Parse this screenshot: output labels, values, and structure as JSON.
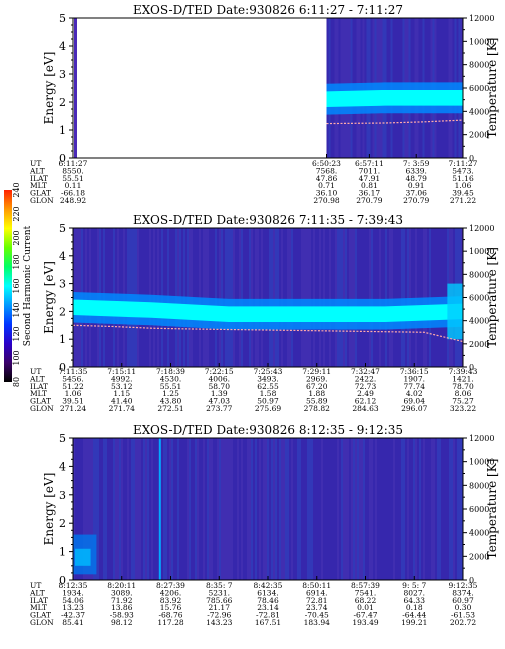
{
  "chart_data": [
    {
      "type": "heatmap",
      "title": "EXOS-D/TED   Date:930826  6:11:27 - 7:11:27",
      "ylabel": "Energy [eV]",
      "ylabel_right": "Temperature [K]",
      "ylim": [
        0,
        5
      ],
      "yticks": [
        "0",
        "1",
        "2",
        "3",
        "4",
        "5"
      ],
      "ylim_right": [
        0,
        12000
      ],
      "yticks_right": [
        "0",
        "2000",
        "4000",
        "6000",
        "8000",
        "10000",
        "12000"
      ],
      "rows": [
        "UT",
        "ALT",
        "ILAT",
        "MLT",
        "GLAT",
        "GLON"
      ],
      "columns": [
        {
          "x": 0.0,
          "values": [
            "6:11:27",
            "8550.",
            "55.51",
            "0.11",
            "-66.18",
            "248.92"
          ]
        },
        {
          "x": 0.65,
          "values": [
            "6:50:23",
            "7568.",
            "47.86",
            "0.71",
            "36.10",
            "270.98"
          ]
        },
        {
          "x": 0.76,
          "values": [
            "6:57:11",
            "7011.",
            "47.91",
            "0.81",
            "36.17",
            "270.79"
          ]
        },
        {
          "x": 0.88,
          "values": [
            "7:  3:59",
            "6339.",
            "48.79",
            "0.91",
            "37.06",
            "270.79"
          ]
        },
        {
          "x": 1.0,
          "values": [
            "7:11:27",
            "5473.",
            "51.16",
            "1.06",
            "39.45",
            "271.22"
          ]
        }
      ],
      "data_start": 0.65,
      "band": [
        {
          "x": 0.65,
          "y": 2.1
        },
        {
          "x": 0.8,
          "y": 2.15
        },
        {
          "x": 1.0,
          "y": 2.15
        }
      ],
      "temperature_trace": [
        {
          "x": 0.65,
          "y": 2950
        },
        {
          "x": 0.8,
          "y": 3000
        },
        {
          "x": 0.9,
          "y": 3100
        },
        {
          "x": 1.0,
          "y": 3250
        }
      ]
    },
    {
      "type": "heatmap",
      "title": "EXOS-D/TED   Date:930826  7:11:35 - 7:39:43",
      "ylabel": "Energy [eV]",
      "ylabel_right": "Temperature [K]",
      "ylim": [
        0,
        5
      ],
      "yticks": [
        "0",
        "1",
        "2",
        "3",
        "4",
        "5"
      ],
      "ylim_right": [
        0,
        12000
      ],
      "yticks_right": [
        "0",
        "2000",
        "4000",
        "6000",
        "8000",
        "10000",
        "12000"
      ],
      "rows": [
        "UT",
        "ALT",
        "ILAT",
        "MLT",
        "GLAT",
        "GLON"
      ],
      "columns": [
        {
          "x": 0.0,
          "values": [
            "7:11:35",
            "5456.",
            "51.22",
            "1.06",
            "39.51",
            "271.24"
          ]
        },
        {
          "x": 0.125,
          "values": [
            "7:15:11",
            "4992.",
            "53.12",
            "1.15",
            "41.40",
            "271.74"
          ]
        },
        {
          "x": 0.25,
          "values": [
            "7:18:39",
            "4530.",
            "55.51",
            "1.25",
            "43.80",
            "272.51"
          ]
        },
        {
          "x": 0.375,
          "values": [
            "7:22:15",
            "4006.",
            "58.70",
            "1.39",
            "47.03",
            "273.77"
          ]
        },
        {
          "x": 0.5,
          "values": [
            "7:25:43",
            "3493.",
            "62.55",
            "1.58",
            "50.97",
            "275.69"
          ]
        },
        {
          "x": 0.625,
          "values": [
            "7:29:11",
            "2969.",
            "67.20",
            "1.88",
            "55.89",
            "278.82"
          ]
        },
        {
          "x": 0.75,
          "values": [
            "7:32:47",
            "2422.",
            "72.73",
            "2.49",
            "62.12",
            "284.63"
          ]
        },
        {
          "x": 0.875,
          "values": [
            "7:36:15",
            "1907.",
            "77.74",
            "4.02",
            "69.04",
            "296.07"
          ]
        },
        {
          "x": 1.0,
          "values": [
            "7:39:43",
            "1421.",
            "78.70",
            "8.06",
            "75.27",
            "323.22"
          ]
        }
      ],
      "band": [
        {
          "x": 0.0,
          "y": 2.15
        },
        {
          "x": 0.2,
          "y": 2.05
        },
        {
          "x": 0.4,
          "y": 1.9
        },
        {
          "x": 0.6,
          "y": 1.9
        },
        {
          "x": 0.8,
          "y": 1.9
        },
        {
          "x": 1.0,
          "y": 2.0
        }
      ],
      "temperature_trace": [
        {
          "x": 0.0,
          "y": 3600
        },
        {
          "x": 0.1,
          "y": 3500
        },
        {
          "x": 0.2,
          "y": 3350
        },
        {
          "x": 0.27,
          "y": 3300
        },
        {
          "x": 0.9,
          "y": 3000
        },
        {
          "x": 1.0,
          "y": 2200
        }
      ]
    },
    {
      "type": "heatmap",
      "title": "EXOS-D/TED   Date:930826  8:12:35 - 9:12:35",
      "ylabel": "Energy [eV]",
      "ylabel_right": "Temperature [K]",
      "ylim": [
        0,
        5
      ],
      "yticks": [
        "0",
        "1",
        "2",
        "3",
        "4",
        "5"
      ],
      "ylim_right": [
        0,
        12000
      ],
      "yticks_right": [
        "0",
        "2000",
        "4000",
        "6000",
        "8000",
        "10000",
        "12000"
      ],
      "rows": [
        "UT",
        "ALT",
        "ILAT",
        "MLT",
        "GLAT",
        "GLON"
      ],
      "columns": [
        {
          "x": 0.0,
          "values": [
            "8:12:35",
            "1934.",
            "54.06",
            "13.23",
            "-42.37",
            "85.41"
          ]
        },
        {
          "x": 0.125,
          "values": [
            "8:20:11",
            "3089.",
            "71.92",
            "13.86",
            "-58.93",
            "98.12"
          ]
        },
        {
          "x": 0.25,
          "values": [
            "8:27:39",
            "4206.",
            "83.92",
            "15.76",
            "-68.76",
            "117.28"
          ]
        },
        {
          "x": 0.375,
          "values": [
            "8:35:  7",
            "5231.",
            "785.66",
            "21.17",
            "-72.96",
            "143.23"
          ]
        },
        {
          "x": 0.5,
          "values": [
            "8:42:35",
            "6134.",
            "78.46",
            "23.14",
            "-72.81",
            "167.51"
          ]
        },
        {
          "x": 0.625,
          "values": [
            "8:50:11",
            "6914.",
            "72.81",
            "23.74",
            "-70.45",
            "183.94"
          ]
        },
        {
          "x": 0.75,
          "values": [
            "8:57:39",
            "7541.",
            "68.22",
            "0.01",
            "-67.47",
            "193.49"
          ]
        },
        {
          "x": 0.875,
          "values": [
            "9:  5:  7",
            "8027.",
            "64.33",
            "0.18",
            "-64.44",
            "199.21"
          ]
        },
        {
          "x": 1.0,
          "values": [
            "9:12:35",
            "8374.",
            "60.97",
            "0.30",
            "-61.53",
            "202.72"
          ]
        }
      ],
      "spike_x": [
        0.22
      ]
    }
  ],
  "colorbar": {
    "label": "Second Harmonic Current",
    "range": [
      80,
      240
    ],
    "ticks": [
      "80",
      "100",
      "120",
      "140",
      "160",
      "180",
      "200",
      "220",
      "240"
    ],
    "colors": [
      "#000000",
      "#3a006a",
      "#2a00c8",
      "#0033ff",
      "#0099ff",
      "#00ffff",
      "#00ff66",
      "#66ff00",
      "#ffff00",
      "#ff9900",
      "#ff2200"
    ]
  },
  "colors": {
    "background": "#3a2aa8",
    "band": "#00ffff",
    "band_edge": "#0088ff",
    "trace": "#ffaaaa"
  }
}
